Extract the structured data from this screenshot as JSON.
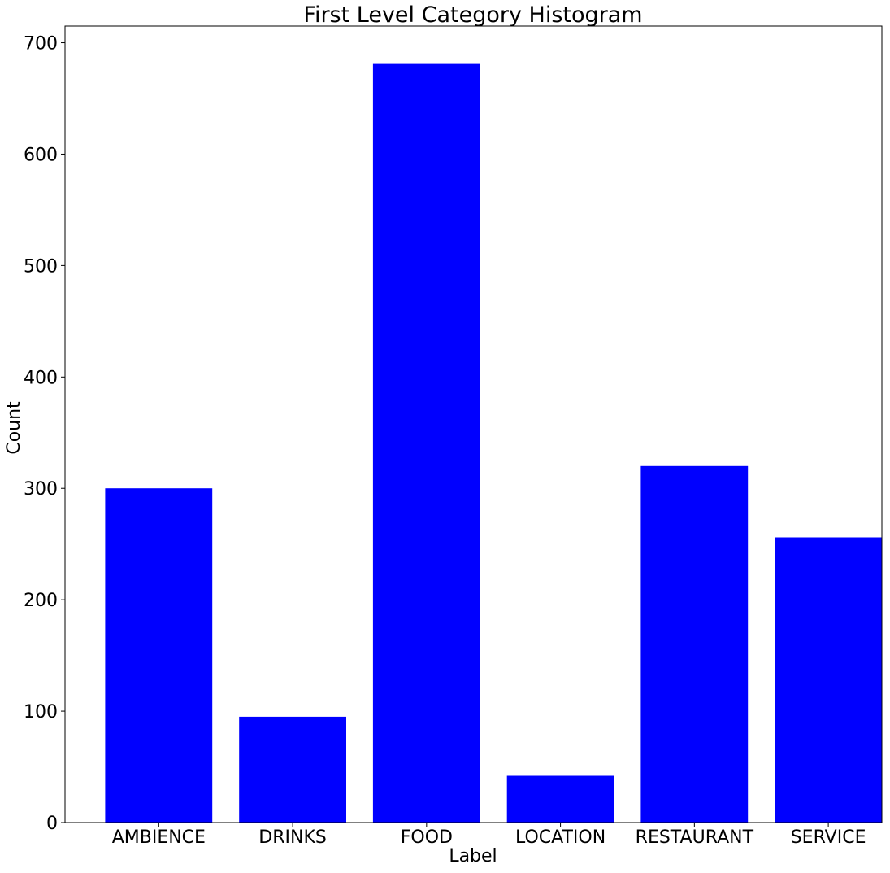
{
  "chart_data": {
    "type": "bar",
    "title": "First Level Category Histogram",
    "xlabel": "Label",
    "ylabel": "Count",
    "categories": [
      "AMBIENCE",
      "DRINKS",
      "FOOD",
      "LOCATION",
      "RESTAURANT",
      "SERVICE"
    ],
    "values": [
      300,
      95,
      681,
      42,
      320,
      256
    ],
    "ylim": [
      0,
      715
    ],
    "yticks": [
      0,
      100,
      200,
      300,
      400,
      500,
      600,
      700
    ],
    "grid": false,
    "legend": "none",
    "bar_color": "#0000ff"
  }
}
